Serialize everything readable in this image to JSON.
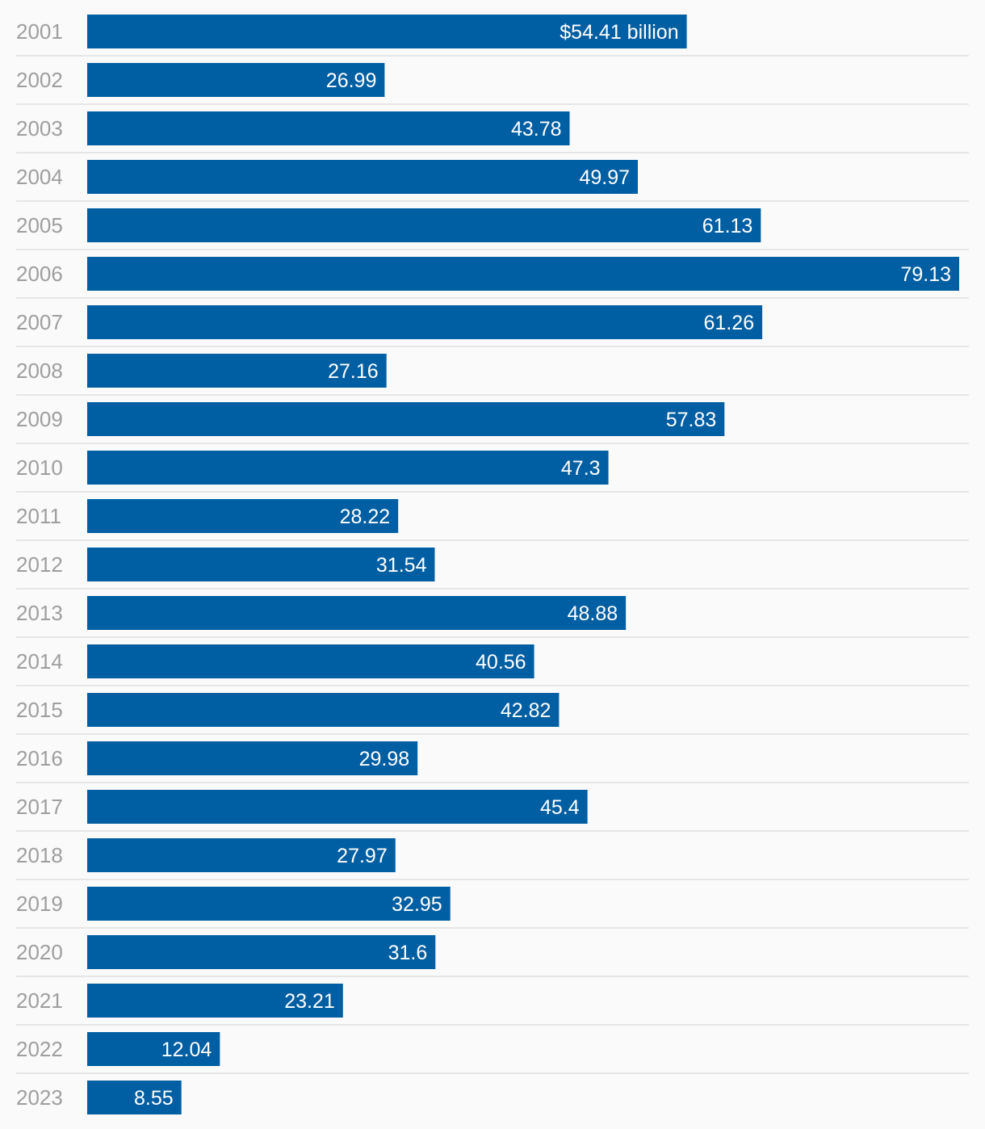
{
  "chart_data": {
    "type": "bar",
    "orientation": "horizontal",
    "categories": [
      "2001",
      "2002",
      "2003",
      "2004",
      "2005",
      "2006",
      "2007",
      "2008",
      "2009",
      "2010",
      "2011",
      "2012",
      "2013",
      "2014",
      "2015",
      "2016",
      "2017",
      "2018",
      "2019",
      "2020",
      "2021",
      "2022",
      "2023"
    ],
    "values": [
      54.41,
      26.99,
      43.78,
      49.97,
      61.13,
      79.13,
      61.26,
      27.16,
      57.83,
      47.3,
      28.22,
      31.54,
      48.88,
      40.56,
      42.82,
      29.98,
      45.4,
      27.97,
      32.95,
      31.6,
      23.21,
      12.04,
      8.55
    ],
    "labels": [
      "$54.41 billion",
      "26.99",
      "43.78",
      "49.97",
      "61.13",
      "79.13",
      "61.26",
      "27.16",
      "57.83",
      "47.3",
      "28.22",
      "31.54",
      "48.88",
      "40.56",
      "42.82",
      "29.98",
      "45.4",
      "27.97",
      "32.95",
      "31.6",
      "23.21",
      "12.04",
      "8.55"
    ],
    "unit": "billion USD",
    "xlim": [
      0,
      79.13
    ],
    "grid": false,
    "colors": {
      "bar": "#005ea2",
      "label": "#ffffff",
      "category_text": "#9e9e9e",
      "divider": "#e6e6e6",
      "background": "#fafafa"
    }
  }
}
